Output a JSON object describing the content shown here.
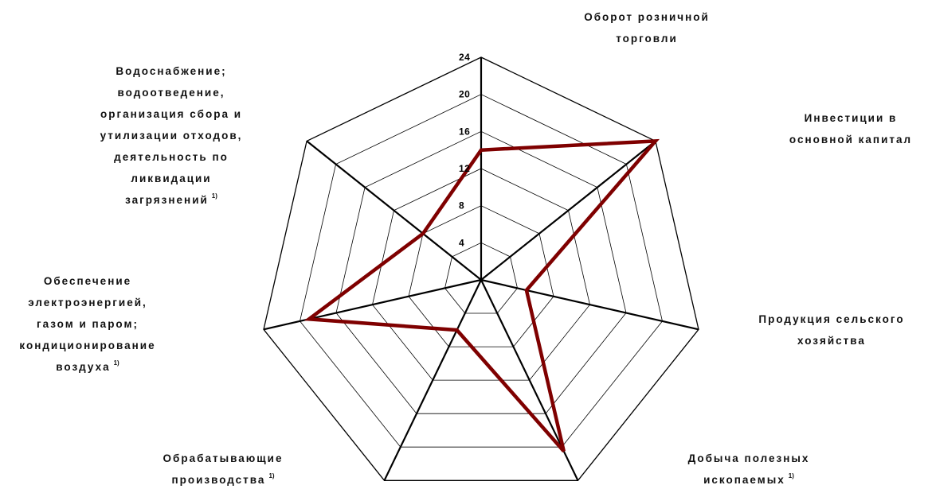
{
  "chart_data": {
    "type": "radar",
    "ticks": [
      "4",
      "8",
      "12",
      "16",
      "20",
      "24"
    ],
    "rmax": 24,
    "grid": true,
    "categories": [
      {
        "lines": [
          "Оборот розничной",
          "торговли"
        ],
        "footnote": ""
      },
      {
        "lines": [
          "Инвестиции в",
          "основной капитал"
        ],
        "footnote": ""
      },
      {
        "lines": [
          "Продукция сельского",
          "хозяйства"
        ],
        "footnote": ""
      },
      {
        "lines": [
          "Добыча полезных",
          "ископаемых"
        ],
        "footnote": "1)"
      },
      {
        "lines": [
          "Обрабатывающие",
          "производства"
        ],
        "footnote": "1)"
      },
      {
        "lines": [
          "Обеспечение",
          "электроэнергией,",
          "газом и паром;",
          "кондиционирование",
          "воздуха"
        ],
        "footnote": "1)"
      },
      {
        "lines": [
          "Водоснабжение;",
          "водоотведение,",
          "организация сбора и",
          "утилизации отходов,",
          "деятельность по",
          "ликвидации",
          "загрязнений"
        ],
        "footnote": "1)"
      }
    ],
    "series": [
      {
        "values": [
          14,
          24,
          5,
          20.5,
          6,
          19,
          8
        ],
        "color": "#7f0000"
      }
    ]
  }
}
